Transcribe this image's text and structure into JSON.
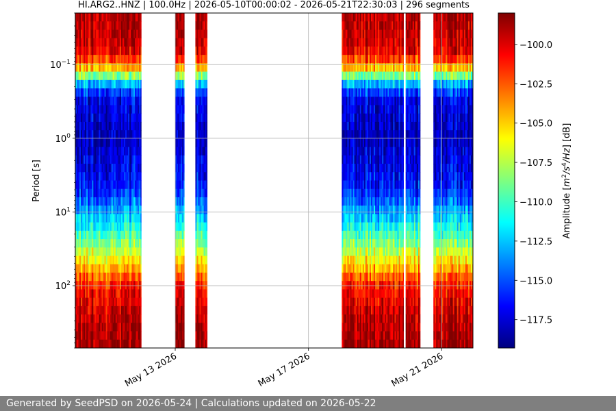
{
  "footer": {
    "text": "Generated by SeedPSD on 2026-05-24 | Calculations updated on 2026-05-22"
  },
  "chart_data": {
    "type": "heatmap",
    "title": "HI.ARG2..HNZ | 100.0Hz | 2026-05-10T00:00:02 - 2026-05-21T22:30:03 | 296 segments",
    "xlabel": "",
    "ylabel": "Period [s]",
    "colorbar_label": "Amplitude [m²/s⁴/Hz] [dB]",
    "colorbar_label_parts": {
      "prefix": "Amplitude [",
      "m": "m",
      "m_exp": "2",
      "s": "/s",
      "s_exp": "4",
      "hz": "/Hz",
      "suffix": "] [dB]"
    },
    "colormap": "jet",
    "y_scale": "log",
    "y_inverted": true,
    "grid": true,
    "ylim": [
      0.02,
      700
    ],
    "x_range": [
      "2026-05-10T00:00:00",
      "2026-05-21T22:30:00"
    ],
    "x_ticks": [
      {
        "date": "2026-05-13",
        "label": "May 13 2026"
      },
      {
        "date": "2026-05-17",
        "label": "May 17 2026"
      },
      {
        "date": "2026-05-21",
        "label": "May 21 2026"
      }
    ],
    "y_ticks": [
      {
        "value": 0.1,
        "label": "10",
        "exp": "−1"
      },
      {
        "value": 1,
        "label": "10",
        "exp": "0"
      },
      {
        "value": 10,
        "label": "10",
        "exp": "1"
      },
      {
        "value": 100,
        "label": "10",
        "exp": "2"
      }
    ],
    "color_range": [
      -119.3,
      -98.0
    ],
    "colorbar_ticks": [
      {
        "value": -100.0,
        "label": "−100.0"
      },
      {
        "value": -102.5,
        "label": "−102.5"
      },
      {
        "value": -105.0,
        "label": "−105.0"
      },
      {
        "value": -107.5,
        "label": "−107.5"
      },
      {
        "value": -110.0,
        "label": "−110.0"
      },
      {
        "value": -112.5,
        "label": "−112.5"
      },
      {
        "value": -115.0,
        "label": "−115.0"
      },
      {
        "value": -117.5,
        "label": "−117.5"
      }
    ],
    "data_segments": [
      {
        "start": "2026-05-10T00:00:00",
        "end": "2026-05-11T23:30:00"
      },
      {
        "start": "2026-05-13T00:00:00",
        "end": "2026-05-13T06:30:00"
      },
      {
        "start": "2026-05-13T14:30:00",
        "end": "2026-05-13T23:00:00"
      },
      {
        "start": "2026-05-18T00:00:00",
        "end": "2026-05-19T20:30:00"
      },
      {
        "start": "2026-05-19T22:00:00",
        "end": "2026-05-20T08:30:00"
      },
      {
        "start": "2026-05-20T18:00:00",
        "end": "2026-05-21T22:30:00"
      }
    ],
    "amplitude_profile": [
      {
        "period": 0.02,
        "db": -99.0
      },
      {
        "period": 0.06,
        "db": -99.5
      },
      {
        "period": 0.1,
        "db": -103.0
      },
      {
        "period": 0.2,
        "db": -114.0
      },
      {
        "period": 0.3,
        "db": -117.0
      },
      {
        "period": 1,
        "db": -118.0
      },
      {
        "period": 5,
        "db": -116.0
      },
      {
        "period": 10,
        "db": -113.0
      },
      {
        "period": 30,
        "db": -108.0
      },
      {
        "period": 100,
        "db": -101.0
      },
      {
        "period": 300,
        "db": -99.0
      },
      {
        "period": 700,
        "db": -98.5
      }
    ]
  }
}
